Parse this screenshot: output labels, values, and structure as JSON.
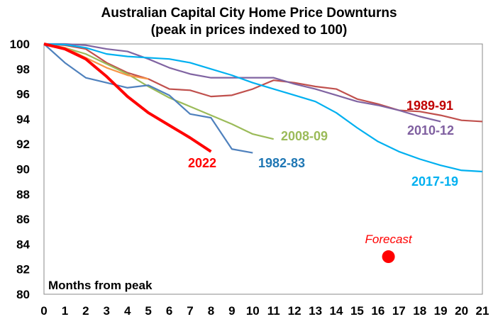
{
  "chart_data": {
    "type": "line",
    "title": "Australian Capital City Home Price Downturns",
    "subtitle": "(peak in prices indexed to 100)",
    "xlabel": "Months from peak",
    "ylabel": "",
    "xlim": [
      0,
      21
    ],
    "ylim": [
      80,
      100
    ],
    "x_ticks": [
      "0",
      "1",
      "2",
      "3",
      "4",
      "5",
      "6",
      "7",
      "8",
      "9",
      "10",
      "11",
      "12",
      "13",
      "14",
      "15",
      "16",
      "17",
      "18",
      "19",
      "20",
      "21"
    ],
    "y_ticks": [
      "80",
      "82",
      "84",
      "86",
      "88",
      "90",
      "92",
      "94",
      "96",
      "98",
      "100"
    ],
    "grid": false,
    "series": [
      {
        "name": "1989-91",
        "color": "#c0504d",
        "label_color": "#c00000",
        "values": [
          100,
          99.9,
          99.6,
          98.5,
          97.7,
          97.2,
          96.4,
          96.3,
          95.8,
          95.9,
          96.4,
          97.1,
          96.9,
          96.6,
          96.4,
          95.6,
          95.2,
          94.7,
          94.6,
          94.3,
          93.9,
          93.8
        ]
      },
      {
        "name": "2010-12",
        "color": "#8064a2",
        "label_color": "#7f5fa0",
        "values": [
          100,
          100,
          99.9,
          99.6,
          99.4,
          98.8,
          98.1,
          97.6,
          97.3,
          97.3,
          97.3,
          97.3,
          96.8,
          96.4,
          95.9,
          95.4,
          95.1,
          94.7,
          94.2,
          93.8
        ]
      },
      {
        "name": "2017-19",
        "color": "#00b0f0",
        "label_color": "#00b0f0",
        "values": [
          100,
          99.95,
          99.7,
          99.2,
          99.0,
          98.9,
          98.8,
          98.5,
          98.0,
          97.5,
          96.9,
          96.4,
          95.9,
          95.4,
          94.5,
          93.3,
          92.2,
          91.4,
          90.8,
          90.3,
          89.9,
          89.8
        ]
      },
      {
        "name": "2008-09",
        "color": "#9bbb59",
        "label_color": "#9bbb59",
        "values": [
          100,
          99.7,
          99.2,
          98.4,
          97.6,
          96.6,
          95.7,
          95.0,
          94.3,
          93.6,
          92.8,
          92.4
        ]
      },
      {
        "name": "1982-83",
        "color": "#4f81bd",
        "label_color": "#1f77b4",
        "values": [
          100,
          98.5,
          97.3,
          96.9,
          96.5,
          96.7,
          95.9,
          94.4,
          94.1,
          91.6,
          91.3
        ]
      },
      {
        "name": "",
        "color": "#f79646",
        "label_color": "#f79646",
        "values": [
          100,
          99.7,
          98.9,
          98.1,
          97.5,
          97.2
        ]
      },
      {
        "name": "2022",
        "color": "#ff0000",
        "label_color": "#ff0000",
        "values": [
          100,
          99.6,
          98.8,
          97.4,
          95.8,
          94.5,
          93.5,
          92.5,
          91.4
        ]
      }
    ],
    "annotations": [
      {
        "text": "Forecast",
        "x": 16.5,
        "y": 83,
        "color": "#ff0000"
      }
    ]
  }
}
